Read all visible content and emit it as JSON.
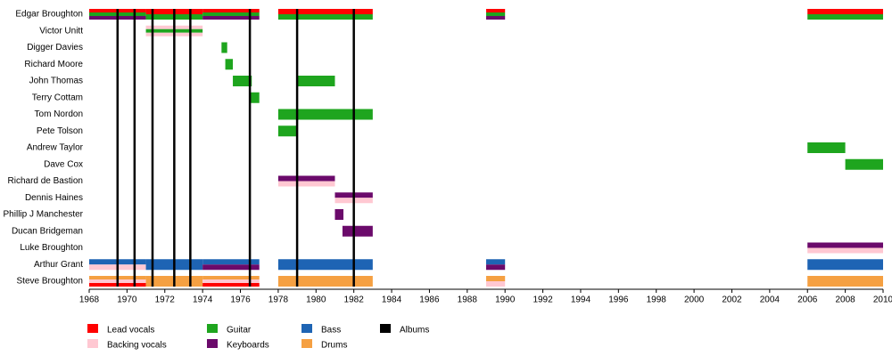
{
  "chart_data": {
    "type": "timeline",
    "xlim": [
      1968,
      2010
    ],
    "xticks": [
      1968,
      1970,
      1972,
      1974,
      1976,
      1978,
      1980,
      1982,
      1984,
      1986,
      1988,
      1990,
      1992,
      1994,
      1996,
      1998,
      2000,
      2002,
      2004,
      2006,
      2008,
      2010
    ],
    "roles": [
      {
        "name": "Lead vocals",
        "color": "#ff0000"
      },
      {
        "name": "Backing vocals",
        "color": "#ffc8d2"
      },
      {
        "name": "Guitar",
        "color": "#1ea51e"
      },
      {
        "name": "Keyboards",
        "color": "#6b0a6b"
      },
      {
        "name": "Bass",
        "color": "#1e64b4"
      },
      {
        "name": "Drums",
        "color": "#f5a042"
      }
    ],
    "albums": {
      "name": "Albums",
      "color": "#000000",
      "x": [
        1969.5,
        1970.4,
        1971.35,
        1972.5,
        1973.35,
        1976.5,
        1979.0,
        1982.0
      ]
    },
    "members": [
      {
        "name": "Edgar Broughton",
        "periods": [
          {
            "start": 1968,
            "end": 1971,
            "roles": [
              "Lead vocals",
              "Guitar",
              "Keyboards"
            ]
          },
          {
            "start": 1971,
            "end": 1974,
            "roles": [
              "Lead vocals",
              "Guitar"
            ]
          },
          {
            "start": 1974,
            "end": 1977,
            "roles": [
              "Lead vocals",
              "Guitar",
              "Keyboards"
            ]
          },
          {
            "start": 1978,
            "end": 1983,
            "roles": [
              "Lead vocals",
              "Guitar"
            ]
          },
          {
            "start": 1989,
            "end": 1990,
            "roles": [
              "Lead vocals",
              "Guitar",
              "Keyboards"
            ]
          },
          {
            "start": 2006,
            "end": 2010,
            "roles": [
              "Lead vocals",
              "Guitar"
            ]
          }
        ]
      },
      {
        "name": "Victor Unitt",
        "periods": [
          {
            "start": 1971,
            "end": 1974,
            "roles": [
              "Backing vocals",
              "Guitar",
              "Backing vocals"
            ]
          }
        ]
      },
      {
        "name": "Digger Davies",
        "periods": [
          {
            "start": 1975,
            "end": 1975.3,
            "roles": [
              "Guitar"
            ]
          }
        ]
      },
      {
        "name": "Richard Moore",
        "periods": [
          {
            "start": 1975.2,
            "end": 1975.6,
            "roles": [
              "Guitar"
            ]
          }
        ]
      },
      {
        "name": "John Thomas",
        "periods": [
          {
            "start": 1975.6,
            "end": 1976.6,
            "roles": [
              "Guitar"
            ]
          },
          {
            "start": 1979,
            "end": 1981,
            "roles": [
              "Guitar"
            ]
          }
        ]
      },
      {
        "name": "Terry Cottam",
        "periods": [
          {
            "start": 1976.5,
            "end": 1977,
            "roles": [
              "Guitar"
            ]
          }
        ]
      },
      {
        "name": "Tom Nordon",
        "periods": [
          {
            "start": 1978,
            "end": 1983,
            "roles": [
              "Guitar"
            ]
          }
        ]
      },
      {
        "name": "Pete Tolson",
        "periods": [
          {
            "start": 1978,
            "end": 1979,
            "roles": [
              "Guitar"
            ]
          }
        ]
      },
      {
        "name": "Andrew Taylor",
        "periods": [
          {
            "start": 2006,
            "end": 2008,
            "roles": [
              "Guitar"
            ]
          }
        ]
      },
      {
        "name": "Dave Cox",
        "periods": [
          {
            "start": 2008,
            "end": 2010,
            "roles": [
              "Guitar"
            ]
          }
        ]
      },
      {
        "name": "Richard de Bastion",
        "periods": [
          {
            "start": 1978,
            "end": 1981,
            "roles": [
              "Keyboards",
              "Backing vocals"
            ]
          }
        ]
      },
      {
        "name": "Dennis Haines",
        "periods": [
          {
            "start": 1981,
            "end": 1983,
            "roles": [
              "Keyboards",
              "Backing vocals"
            ]
          }
        ]
      },
      {
        "name": "Phillip J Manchester",
        "periods": [
          {
            "start": 1981,
            "end": 1981.45,
            "roles": [
              "Keyboards"
            ]
          }
        ]
      },
      {
        "name": "Ducan Bridgeman",
        "periods": [
          {
            "start": 1981.4,
            "end": 1983,
            "roles": [
              "Keyboards"
            ]
          }
        ]
      },
      {
        "name": "Luke Broughton",
        "periods": [
          {
            "start": 2006,
            "end": 2010,
            "roles": [
              "Keyboards",
              "Backing vocals"
            ]
          }
        ]
      },
      {
        "name": "Arthur Grant",
        "periods": [
          {
            "start": 1968,
            "end": 1971,
            "roles": [
              "Bass",
              "Backing vocals"
            ]
          },
          {
            "start": 1971,
            "end": 1974,
            "roles": [
              "Bass"
            ]
          },
          {
            "start": 1974,
            "end": 1977,
            "roles": [
              "Bass",
              "Keyboards"
            ]
          },
          {
            "start": 1978,
            "end": 1983,
            "roles": [
              "Bass"
            ]
          },
          {
            "start": 1989,
            "end": 1990,
            "roles": [
              "Bass",
              "Keyboards"
            ]
          },
          {
            "start": 2006,
            "end": 2010,
            "roles": [
              "Bass"
            ]
          }
        ]
      },
      {
        "name": "Steve Broughton",
        "periods": [
          {
            "start": 1968,
            "end": 1971,
            "roles": [
              "Drums",
              "Backing vocals",
              "Lead vocals"
            ]
          },
          {
            "start": 1971,
            "end": 1974,
            "roles": [
              "Drums"
            ]
          },
          {
            "start": 1974,
            "end": 1977,
            "roles": [
              "Drums",
              "Backing vocals",
              "Lead vocals"
            ]
          },
          {
            "start": 1978,
            "end": 1983,
            "roles": [
              "Drums"
            ]
          },
          {
            "start": 1989,
            "end": 1990,
            "roles": [
              "Drums",
              "Backing vocals"
            ]
          },
          {
            "start": 2006,
            "end": 2010,
            "roles": [
              "Drums"
            ]
          }
        ]
      }
    ]
  }
}
